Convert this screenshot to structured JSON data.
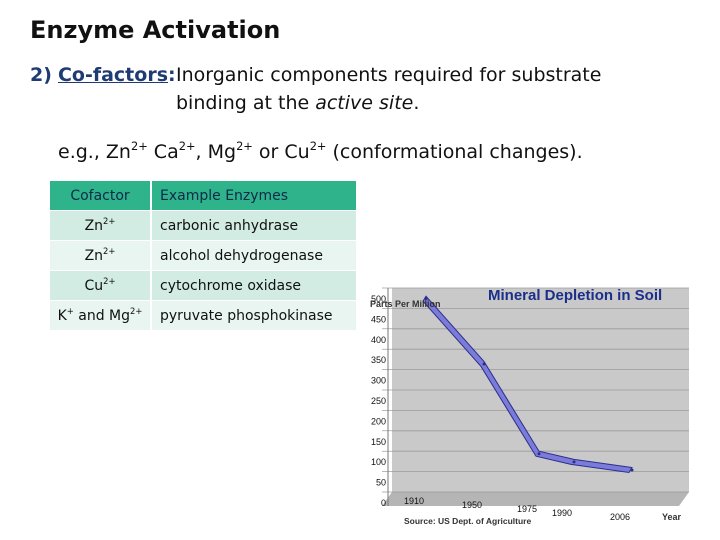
{
  "title": "Enzyme Activation",
  "point": {
    "number": "2)",
    "term": "Co-factors",
    "colon": ":",
    "definition_line1": "Inorganic components required for substrate",
    "definition_line2_a": "binding at the ",
    "definition_line2_em": "active site",
    "definition_line2_b": "."
  },
  "example": {
    "prefix": "e.g., Zn",
    "zn_charge": "2+",
    "ca": " Ca",
    "ca_charge": "2+",
    "mg": ", Mg",
    "mg_charge": "2+",
    "or_cu": " or Cu",
    "cu_charge": "2+",
    "suffix": " (conformational changes)."
  },
  "table": {
    "headers": [
      "Cofactor",
      "Example Enzymes"
    ],
    "rows": [
      {
        "cofactor": "Zn",
        "charge": "2+",
        "enzyme": "carbonic anhydrase"
      },
      {
        "cofactor": "Zn",
        "charge": "2+",
        "enzyme": "alcohol dehydrogenase"
      },
      {
        "cofactor": "Cu",
        "charge": "2+",
        "enzyme": "cytochrome oxidase"
      },
      {
        "cofactor_a": "K",
        "charge_a": "+",
        "cofactor_mid": " and Mg",
        "charge_b": "2+",
        "enzyme": "pyruvate phosphokinase"
      }
    ]
  },
  "chart_data": {
    "type": "line",
    "title": "Mineral Depletion in Soil",
    "ylabel": "Parts Per Million",
    "xlabel": "Year",
    "source": "Source: US Dept. of Agriculture",
    "yticks": [
      "500",
      "450",
      "400",
      "350",
      "300",
      "250",
      "200",
      "150",
      "100",
      "50",
      "0"
    ],
    "ylim": [
      0,
      500
    ],
    "grid": true,
    "x": [
      "1910",
      "1950",
      "1975",
      "1990",
      "2006"
    ],
    "series": [
      {
        "values": [
          480,
          320,
          100,
          80,
          60
        ]
      }
    ],
    "colors": {
      "line": "#7b7bd9",
      "line_edge": "#2d2d8c",
      "wall": "#c9c9c9",
      "title": "#1b2f8a"
    }
  }
}
